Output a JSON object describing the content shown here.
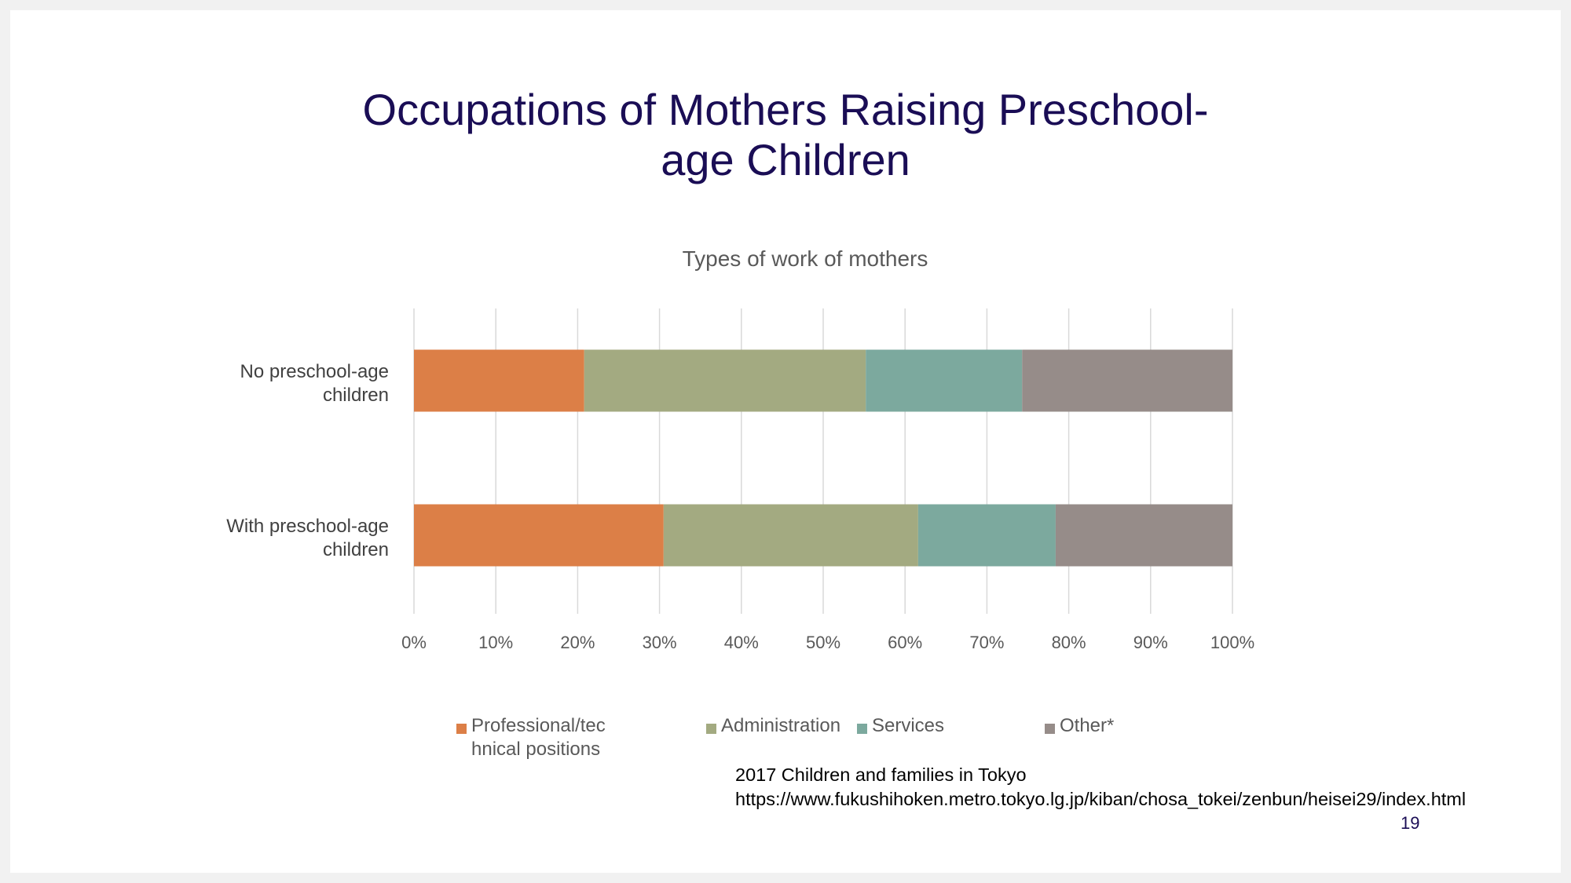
{
  "slide": {
    "title_lines": [
      "Occupations of Mothers Raising Preschool-",
      "age Children"
    ],
    "source_lines": [
      "2017 Children and families in Tokyo",
      "https://www.fukushihoken.metro.tokyo.lg.jp/kiban/chosa_tokei/zenbun/heisei29/index.html"
    ],
    "page_number": "19"
  },
  "chart_data": {
    "type": "bar",
    "orientation": "horizontal",
    "stacked": "percent",
    "title": "Types of work of mothers",
    "categories": [
      "No preschool-age children",
      "With preschool-age children"
    ],
    "category_label_lines": [
      [
        "No preschool-age",
        "children"
      ],
      [
        "With preschool-age",
        "children"
      ]
    ],
    "series": [
      {
        "name": "Professional/technical positions",
        "legend_lines": [
          "Professional/tec",
          "hnical positions"
        ],
        "color": "#dc7f47",
        "values": [
          20.8,
          30.5
        ]
      },
      {
        "name": "Administration",
        "legend_lines": [
          "Administration"
        ],
        "color": "#a3aa81",
        "values": [
          34.4,
          31.1
        ]
      },
      {
        "name": "Services",
        "legend_lines": [
          "Services"
        ],
        "color": "#7ca99e",
        "values": [
          19.1,
          16.8
        ]
      },
      {
        "name": "Other*",
        "legend_lines": [
          "Other*"
        ],
        "color": "#968c89",
        "values": [
          25.7,
          21.6
        ]
      }
    ],
    "xlim": [
      0,
      100
    ],
    "x_ticks": [
      "0%",
      "10%",
      "20%",
      "30%",
      "40%",
      "50%",
      "60%",
      "70%",
      "80%",
      "90%",
      "100%"
    ],
    "grid": true,
    "legend_position": "bottom"
  }
}
